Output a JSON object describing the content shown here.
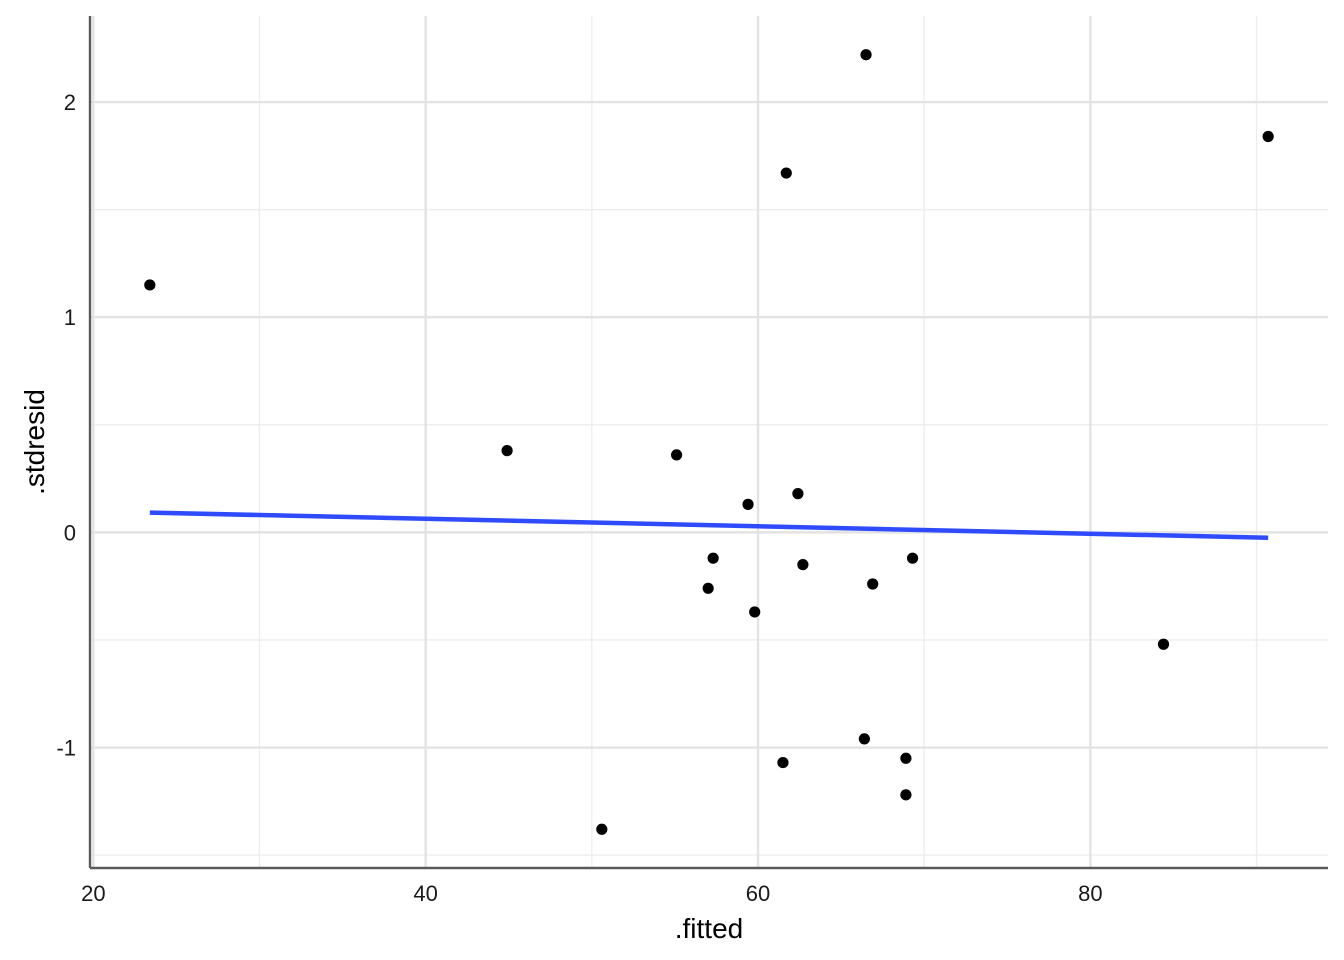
{
  "chart_data": {
    "type": "scatter",
    "xlabel": ".fitted",
    "ylabel": ".stdresid",
    "xlim": [
      19.8,
      94.3
    ],
    "ylim": [
      -1.56,
      2.4
    ],
    "x_ticks": [
      20,
      40,
      60,
      80
    ],
    "x_tick_labels": [
      "20",
      "40",
      "60",
      "80"
    ],
    "y_ticks": [
      -1,
      0,
      1,
      2
    ],
    "y_tick_labels": [
      "-1",
      "0",
      "1",
      "2"
    ],
    "x_minor_ticks": [
      30,
      50,
      70,
      90
    ],
    "y_minor_ticks": [
      -1.5,
      -0.5,
      0.5,
      1.5
    ],
    "grid": true,
    "points": [
      {
        "x": 23.4,
        "y": 1.15
      },
      {
        "x": 44.9,
        "y": 0.38
      },
      {
        "x": 50.6,
        "y": -1.38
      },
      {
        "x": 55.1,
        "y": 0.36
      },
      {
        "x": 57.0,
        "y": -0.26
      },
      {
        "x": 57.3,
        "y": -0.12
      },
      {
        "x": 59.4,
        "y": 0.13
      },
      {
        "x": 59.8,
        "y": -0.37
      },
      {
        "x": 61.5,
        "y": -1.07
      },
      {
        "x": 61.7,
        "y": 1.67
      },
      {
        "x": 62.4,
        "y": 0.18
      },
      {
        "x": 62.7,
        "y": -0.15
      },
      {
        "x": 66.4,
        "y": -0.96
      },
      {
        "x": 66.5,
        "y": 2.22
      },
      {
        "x": 66.9,
        "y": -0.24
      },
      {
        "x": 68.9,
        "y": -1.22
      },
      {
        "x": 68.9,
        "y": -1.05
      },
      {
        "x": 69.3,
        "y": -0.12
      },
      {
        "x": 84.4,
        "y": -0.52
      },
      {
        "x": 90.7,
        "y": 1.84
      }
    ],
    "trend_line": {
      "color": "#2e4bff",
      "x": [
        23.4,
        90.7
      ],
      "y": [
        0.092,
        -0.025
      ]
    },
    "point_color": "#000000"
  }
}
